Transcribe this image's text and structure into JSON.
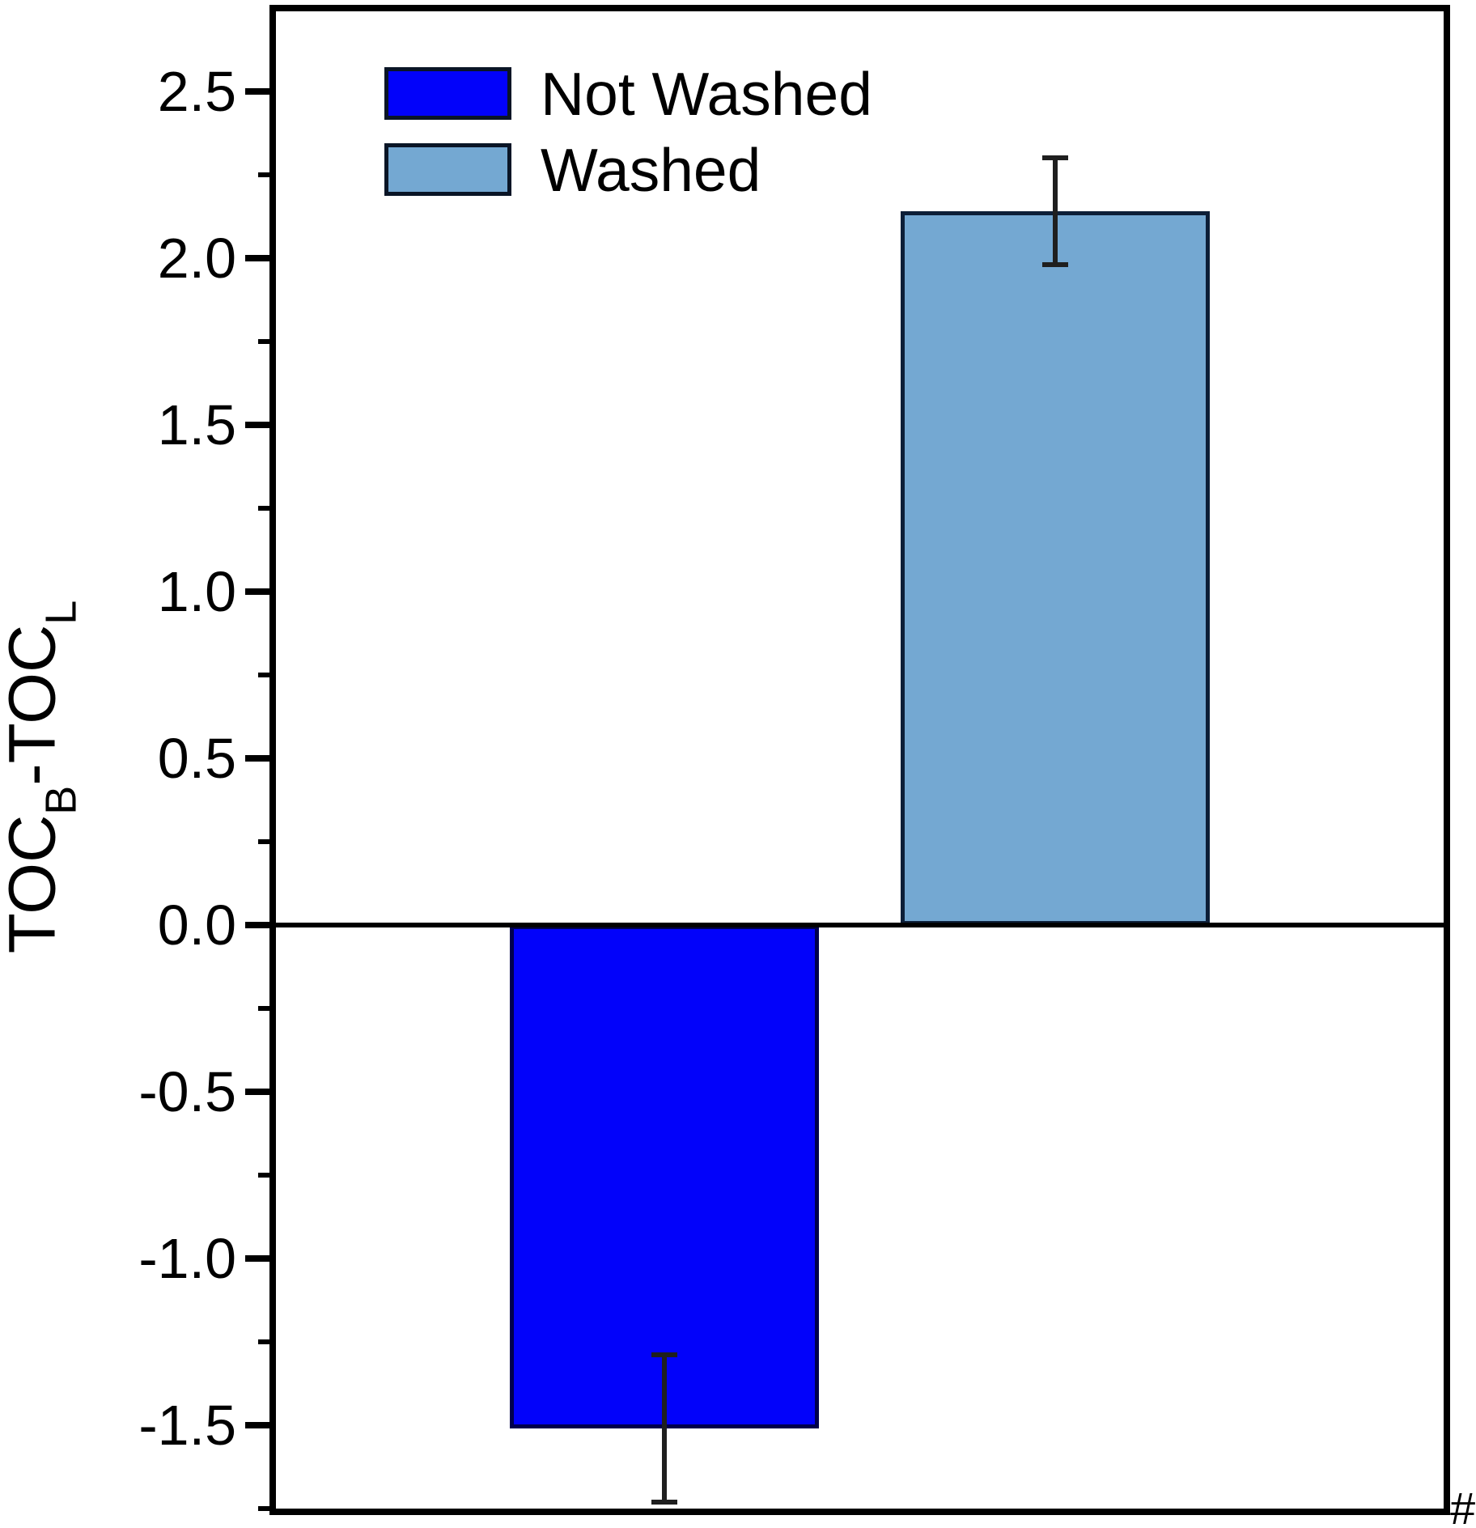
{
  "figure": {
    "hash_annotation": "#"
  },
  "chart_data": {
    "type": "bar",
    "title": "",
    "xlabel": "",
    "ylabel": "TOC_B-TOC_L",
    "ylabel_parts": [
      {
        "text": "TOC",
        "sub": false
      },
      {
        "text": "B",
        "sub": true
      },
      {
        "text": "-TOC",
        "sub": false
      },
      {
        "text": "L",
        "sub": true
      }
    ],
    "categories": [
      "Not Washed",
      "Washed"
    ],
    "series": [
      {
        "name": "Not Washed",
        "value": -1.51,
        "error": 0.22,
        "fill": "#0202fa",
        "stroke": "#00004d"
      },
      {
        "name": "Washed",
        "value": 2.14,
        "error": 0.16,
        "fill": "#74a8d2",
        "stroke": "#0d1f38"
      }
    ],
    "ylim": [
      -1.76,
      2.75
    ],
    "yticks_major": [
      2.5,
      2.0,
      1.5,
      1.0,
      0.5,
      0.0,
      -0.5,
      -1.0,
      -1.5
    ],
    "ytick_labels": [
      "2.5",
      "2.0",
      "1.5",
      "1.0",
      "0.5",
      "0.0",
      "-0.5",
      "-1.0",
      "-1.5"
    ],
    "yticks_minor": [
      2.25,
      1.75,
      1.25,
      0.75,
      0.25,
      -0.25,
      -0.75,
      -1.25,
      -1.75
    ],
    "baseline": 0.0,
    "grid": false,
    "legend": {
      "position": "top-left",
      "entries": [
        {
          "label": "Not Washed",
          "color": "#0202fa",
          "stroke": "#0a1526"
        },
        {
          "label": "Washed",
          "color": "#74a8d2",
          "stroke": "#0a1526"
        }
      ]
    }
  }
}
